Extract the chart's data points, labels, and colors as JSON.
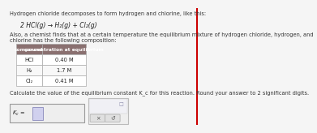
{
  "title_line1": "Hydrogen chloride decomposes to form hydrogen and chlorine, like this:",
  "reaction": "2 HCl(g) → H₂(g) + Cl₂(g)",
  "also_text": "Also, a chemist finds that at a certain temperature the equilibrium mixture of hydrogen chloride, hydrogen, and chlorine has the following composition:",
  "table_headers": [
    "compound",
    "concentration at equilibrium"
  ],
  "table_rows": [
    [
      "HCl",
      "0.40 M"
    ],
    [
      "H₂",
      "1.7 M"
    ],
    [
      "Cl₂",
      "0.41 M"
    ]
  ],
  "question_text": "Calculate the value of the equilibrium constant K_c for this reaction. Round your answer to 2 significant digits.",
  "answer_label": "K_c = ",
  "answer_box_color": "#eeeeee",
  "header_bg": "#8a7070",
  "header_text_color": "#ffffff",
  "bg_color": "#f5f5f5",
  "table_border_color": "#aaaaaa",
  "font_size_small": 5.5,
  "font_size_tiny": 4.8,
  "red_line_x": 0.945,
  "red_line_color": "#cc0000"
}
